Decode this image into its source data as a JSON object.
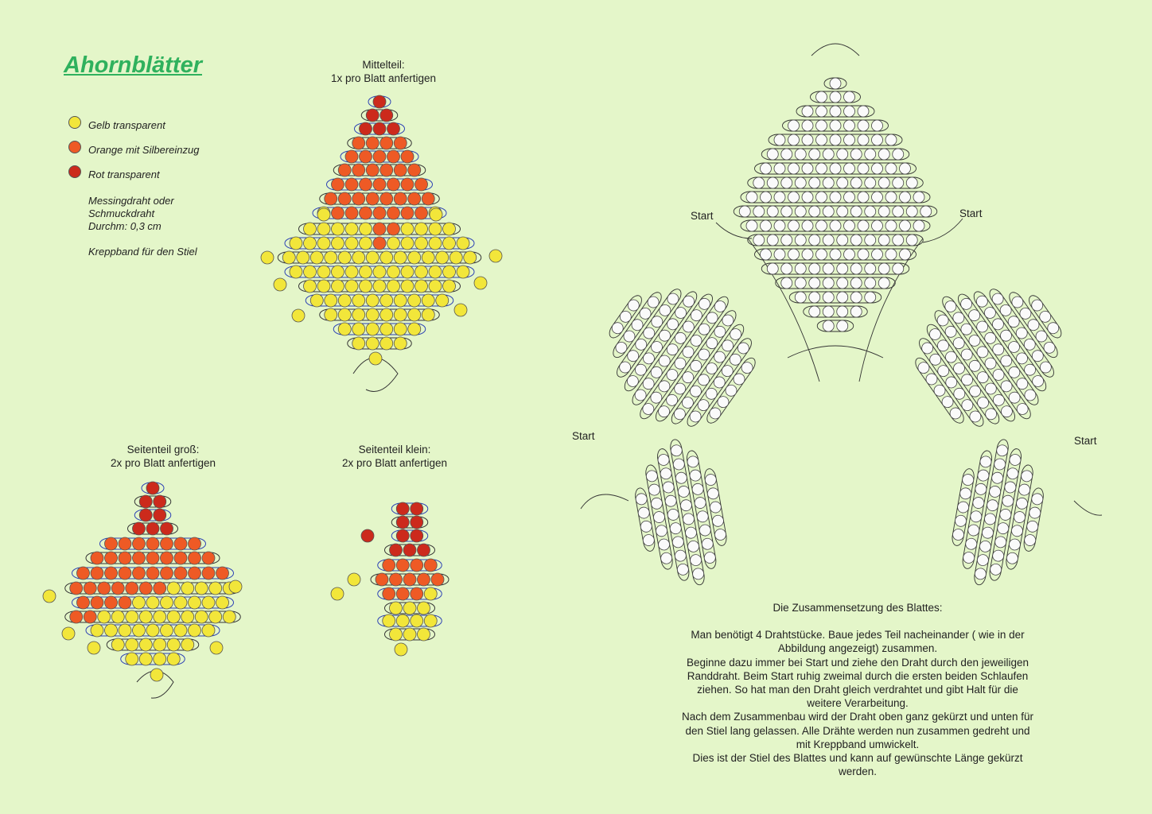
{
  "title": "Ahornblätter",
  "legend": {
    "items": [
      {
        "label": "Gelb transparent",
        "color": "#f2e63a"
      },
      {
        "label": "Orange mit Silbereinzug",
        "color": "#ee5a25"
      },
      {
        "label": "Rot transparent",
        "color": "#cc2a1c"
      }
    ],
    "wire_line1": "Messingdraht oder",
    "wire_line2": "Schmuckdraht",
    "wire_line3": "Durchm: 0,3 cm",
    "tape": "Kreppband für den Stiel"
  },
  "captions": {
    "mittelteil_1": "Mittelteil:",
    "mittelteil_2": "1x pro Blatt anfertigen",
    "gross_1": "Seitenteil groß:",
    "gross_2": "2x pro Blatt anfertigen",
    "klein_1": "Seitenteil klein:",
    "klein_2": "2x pro Blatt anfertigen"
  },
  "start_labels": {
    "top_left": "Start",
    "top_right": "Start",
    "bottom_left": "Start",
    "bottom_right": "Start"
  },
  "description": {
    "heading": "Die Zusammensetzung des Blattes:",
    "lines": [
      "Man benötigt 4 Drahtstücke. Baue jedes Teil nacheinander ( wie in der",
      "Abbildung angezeigt) zusammen.",
      "Beginne dazu immer bei Start und ziehe den Draht durch den jeweiligen",
      "Randdraht. Beim Start ruhig zweimal durch die ersten beiden Schlaufen",
      "ziehen. So hat man den Draht gleich verdrahtet und gibt Halt für die",
      "weitere Verarbeitung.",
      "Nach dem Zusammenbau wird der Draht oben ganz gekürzt und unten für",
      "den Stiel lang gelassen. Alle Drähte werden nun zusammen gedreht und",
      "mit Kreppband umwickelt.",
      "Dies ist der Stiel des Blattes und kann auf gewünschte Länge gekürzt",
      "werden."
    ]
  },
  "colors": {
    "background": "#e4f6c9",
    "yellow": "#f2e63a",
    "orange": "#ee5a25",
    "red": "#cc2a1c",
    "wire_blue": "#2a3fb4",
    "title_green": "#2fb15d"
  }
}
